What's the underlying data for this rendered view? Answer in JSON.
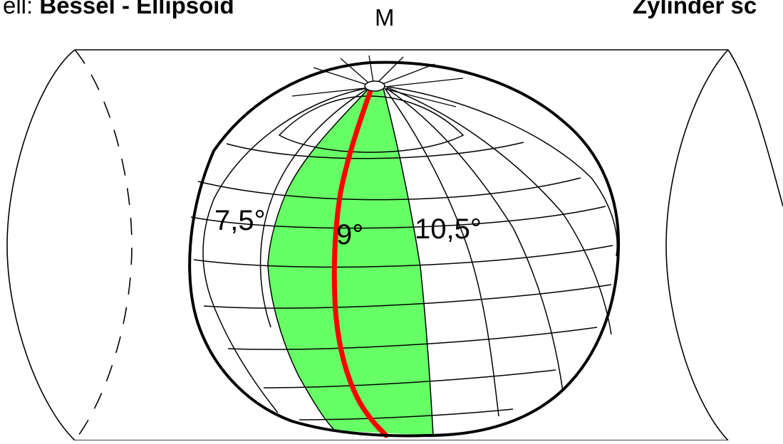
{
  "header": {
    "left_prefix": "ell:",
    "left_bold": "Bessel - Ellipsoid",
    "right_text": "Zylinder sc"
  },
  "pole_label": "M",
  "meridian_labels": {
    "left": "7,5°",
    "center": "9°",
    "right": "10,5°"
  },
  "colors": {
    "zone_fill": "#66FF66",
    "central_meridian": "#FF0000",
    "outline": "#000000",
    "background": "#FFFFFF"
  }
}
